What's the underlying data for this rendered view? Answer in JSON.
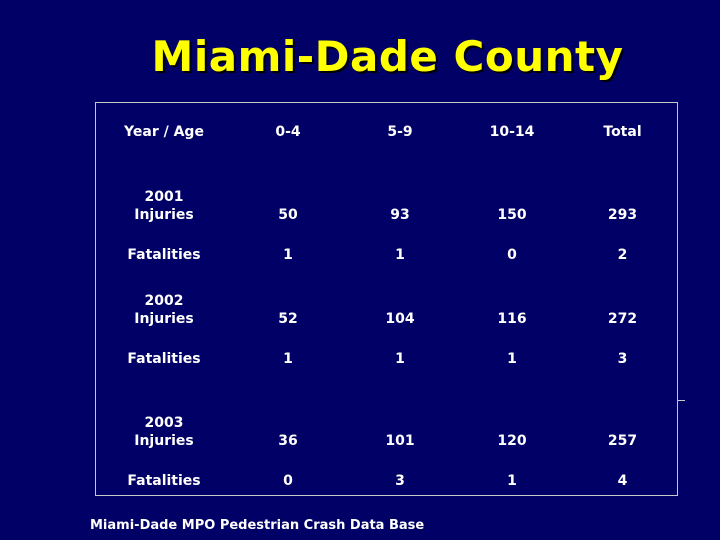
{
  "slide": {
    "title": "Miami-Dade County",
    "footer": "Miami-Dade MPO Pedestrian Crash Data Base"
  },
  "table": {
    "headers": [
      "Year / Age",
      "0-4",
      "5-9",
      "10-14",
      "Total"
    ],
    "rows": [
      {
        "year": "2001",
        "label": "Injuries",
        "values": [
          "50",
          "93",
          "150",
          "293"
        ]
      },
      {
        "year": "",
        "label": "Fatalities",
        "values": [
          "1",
          "1",
          "0",
          "2"
        ]
      },
      {
        "year": "2002",
        "label": "Injuries",
        "values": [
          "52",
          "104",
          "116",
          "272"
        ]
      },
      {
        "year": "",
        "label": "Fatalities",
        "values": [
          "1",
          "1",
          "1",
          "3"
        ]
      },
      {
        "year": "2003",
        "label": "Injuries",
        "values": [
          "36",
          "101",
          "120",
          "257"
        ]
      },
      {
        "year": "",
        "label": "Fatalities",
        "values": [
          "0",
          "3",
          "1",
          "4"
        ]
      }
    ]
  },
  "colors": {
    "background": "#000066",
    "title": "#ffff00",
    "text": "#ffffff",
    "border": "#c8c8c8"
  }
}
